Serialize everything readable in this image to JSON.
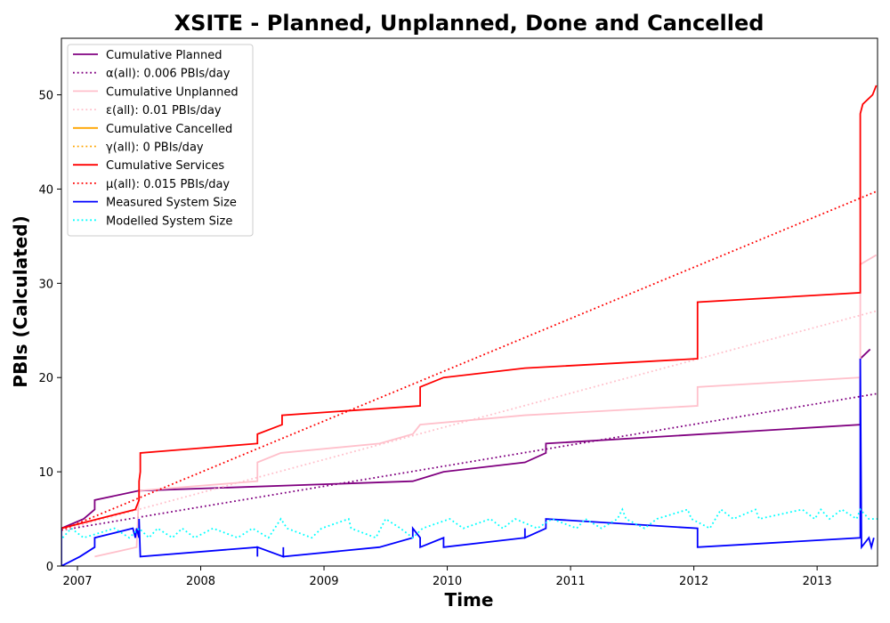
{
  "chart_data": {
    "type": "line",
    "title": "XSITE - Planned, Unplanned, Done  and Cancelled",
    "xlabel": "Time",
    "ylabel": "PBIs (Calculated)",
    "xlim": [
      2006.87,
      2013.49
    ],
    "ylim": [
      0,
      56
    ],
    "x_ticks": [
      2007,
      2008,
      2009,
      2010,
      2011,
      2012,
      2013
    ],
    "y_ticks": [
      0,
      10,
      20,
      30,
      40,
      50
    ],
    "grid": false,
    "legend_position": "top-left",
    "series": [
      {
        "name": "Cumulative Planned",
        "style": "solid",
        "color": "#800080",
        "points": [
          [
            2006.87,
            4
          ],
          [
            2007.05,
            5
          ],
          [
            2007.14,
            6
          ],
          [
            2007.14,
            7
          ],
          [
            2007.5,
            8
          ],
          [
            2007.5,
            8
          ],
          [
            2009.72,
            9
          ],
          [
            2009.97,
            10
          ],
          [
            2010.63,
            11
          ],
          [
            2010.8,
            12
          ],
          [
            2010.8,
            13
          ],
          [
            2013.35,
            15
          ],
          [
            2013.35,
            22
          ],
          [
            2013.43,
            23
          ]
        ]
      },
      {
        "name": "α(all): 0.006 PBIs/day",
        "style": "dotted",
        "color": "#800080",
        "points": [
          [
            2006.87,
            3.8
          ],
          [
            2013.49,
            18.3
          ]
        ]
      },
      {
        "name": "Cumulative Unplanned",
        "style": "solid",
        "color": "#ffc0cb",
        "points": [
          [
            2007.14,
            1
          ],
          [
            2007.48,
            2
          ],
          [
            2007.5,
            8
          ],
          [
            2008.46,
            9
          ],
          [
            2008.46,
            11
          ],
          [
            2008.65,
            12
          ],
          [
            2009.45,
            13
          ],
          [
            2009.72,
            14
          ],
          [
            2009.78,
            15
          ],
          [
            2010.63,
            16
          ],
          [
            2012.03,
            17
          ],
          [
            2012.03,
            19
          ],
          [
            2013.35,
            20
          ],
          [
            2013.35,
            32
          ],
          [
            2013.48,
            33
          ]
        ]
      },
      {
        "name": "ε(all): 0.01 PBIs/day",
        "style": "dotted",
        "color": "#ffc0cb",
        "points": [
          [
            2006.87,
            3.8
          ],
          [
            2013.49,
            27.1
          ]
        ]
      },
      {
        "name": "Cumulative Cancelled",
        "style": "solid",
        "color": "#ffa500",
        "points": []
      },
      {
        "name": "γ(all): 0 PBIs/day",
        "style": "dotted",
        "color": "#ffa500",
        "points": []
      },
      {
        "name": "Cumulative Services",
        "style": "solid",
        "color": "#ff0000",
        "points": [
          [
            2006.87,
            4
          ],
          [
            2007.47,
            6
          ],
          [
            2007.5,
            7
          ],
          [
            2007.5,
            9
          ],
          [
            2007.51,
            10
          ],
          [
            2007.51,
            12
          ],
          [
            2008.46,
            13
          ],
          [
            2008.46,
            14
          ],
          [
            2008.66,
            15
          ],
          [
            2008.66,
            16
          ],
          [
            2009.78,
            17
          ],
          [
            2009.78,
            19
          ],
          [
            2009.97,
            20
          ],
          [
            2010.63,
            21
          ],
          [
            2012.03,
            22
          ],
          [
            2012.03,
            28
          ],
          [
            2013.35,
            29
          ],
          [
            2013.35,
            48
          ],
          [
            2013.37,
            49
          ],
          [
            2013.45,
            50
          ],
          [
            2013.48,
            51
          ]
        ]
      },
      {
        "name": "μ(all): 0.015 PBIs/day",
        "style": "dotted",
        "color": "#ff0000",
        "points": [
          [
            2006.87,
            3.8
          ],
          [
            2013.49,
            39.8
          ]
        ]
      },
      {
        "name": "Measured System Size",
        "style": "solid",
        "color": "#0000ff",
        "points": [
          [
            2006.87,
            4
          ],
          [
            2006.87,
            0
          ],
          [
            2007.02,
            1
          ],
          [
            2007.14,
            2
          ],
          [
            2007.14,
            3
          ],
          [
            2007.45,
            4
          ],
          [
            2007.47,
            3
          ],
          [
            2007.48,
            4
          ],
          [
            2007.5,
            3
          ],
          [
            2007.5,
            5
          ],
          [
            2007.51,
            1
          ],
          [
            2008.46,
            2
          ],
          [
            2008.46,
            1
          ],
          [
            2008.46,
            2
          ],
          [
            2008.67,
            1
          ],
          [
            2008.67,
            2
          ],
          [
            2008.67,
            1
          ],
          [
            2009.45,
            2
          ],
          [
            2009.72,
            3
          ],
          [
            2009.72,
            4
          ],
          [
            2009.78,
            3
          ],
          [
            2009.78,
            2
          ],
          [
            2009.97,
            3
          ],
          [
            2009.97,
            2
          ],
          [
            2010.63,
            3
          ],
          [
            2010.63,
            4
          ],
          [
            2010.63,
            3
          ],
          [
            2010.8,
            4
          ],
          [
            2010.8,
            5
          ],
          [
            2012.03,
            4
          ],
          [
            2012.03,
            2
          ],
          [
            2013.35,
            3
          ],
          [
            2013.35,
            22
          ],
          [
            2013.36,
            2
          ],
          [
            2013.42,
            3
          ],
          [
            2013.44,
            2
          ],
          [
            2013.46,
            3
          ]
        ]
      },
      {
        "name": "Modelled System Size",
        "style": "dotted",
        "color": "#00ffff",
        "points": [
          [
            2006.88,
            3
          ],
          [
            2006.95,
            4
          ],
          [
            2007.05,
            3
          ],
          [
            2007.3,
            4
          ],
          [
            2007.42,
            3
          ],
          [
            2007.5,
            4
          ],
          [
            2007.58,
            3
          ],
          [
            2007.65,
            4
          ],
          [
            2007.77,
            3
          ],
          [
            2007.85,
            4
          ],
          [
            2007.95,
            3
          ],
          [
            2008.1,
            4
          ],
          [
            2008.3,
            3
          ],
          [
            2008.42,
            4
          ],
          [
            2008.55,
            3
          ],
          [
            2008.65,
            5
          ],
          [
            2008.7,
            4
          ],
          [
            2008.9,
            3
          ],
          [
            2008.98,
            4
          ],
          [
            2009.2,
            5
          ],
          [
            2009.22,
            4
          ],
          [
            2009.42,
            3
          ],
          [
            2009.5,
            5
          ],
          [
            2009.62,
            4
          ],
          [
            2009.72,
            3
          ],
          [
            2009.8,
            4
          ],
          [
            2010.02,
            5
          ],
          [
            2010.13,
            4
          ],
          [
            2010.35,
            5
          ],
          [
            2010.45,
            4
          ],
          [
            2010.55,
            5
          ],
          [
            2010.73,
            4
          ],
          [
            2010.85,
            5
          ],
          [
            2011.05,
            4
          ],
          [
            2011.12,
            5
          ],
          [
            2011.25,
            4
          ],
          [
            2011.38,
            5
          ],
          [
            2011.42,
            6
          ],
          [
            2011.45,
            5
          ],
          [
            2011.6,
            4
          ],
          [
            2011.7,
            5
          ],
          [
            2011.95,
            6
          ],
          [
            2011.98,
            5
          ],
          [
            2012.13,
            4
          ],
          [
            2012.22,
            6
          ],
          [
            2012.32,
            5
          ],
          [
            2012.5,
            6
          ],
          [
            2012.53,
            5
          ],
          [
            2012.88,
            6
          ],
          [
            2012.98,
            5
          ],
          [
            2013.03,
            6
          ],
          [
            2013.1,
            5
          ],
          [
            2013.2,
            6
          ],
          [
            2013.32,
            5
          ],
          [
            2013.35,
            6
          ],
          [
            2013.42,
            5
          ],
          [
            2013.49,
            5
          ]
        ]
      }
    ]
  }
}
